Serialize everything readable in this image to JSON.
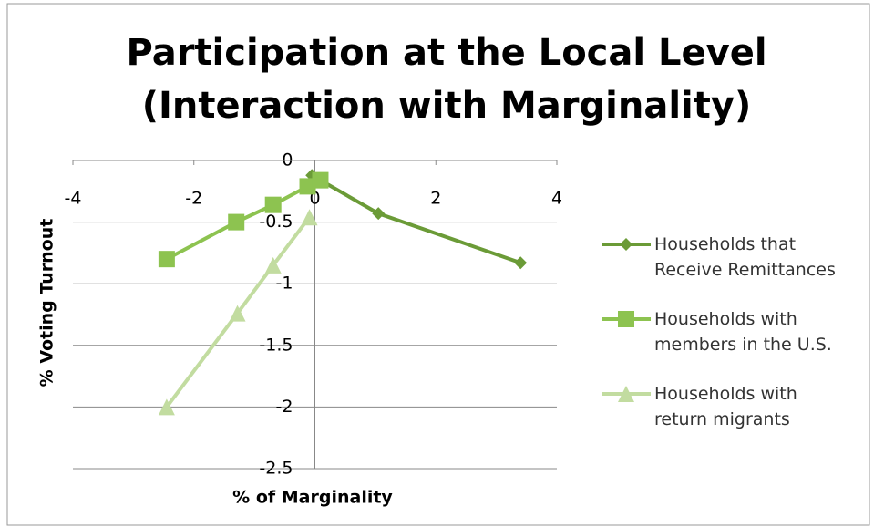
{
  "chart_data": {
    "type": "line",
    "title": [
      "Participation at the Local Level",
      "(Interaction with Marginality)"
    ],
    "x_label": "% of Marginality",
    "y_label": "% Voting Turnout",
    "xlim": [
      -4,
      4
    ],
    "xticks": [
      -4,
      -2,
      0,
      2,
      4
    ],
    "ylim": [
      -2.5,
      0
    ],
    "yticks": [
      0,
      -0.5,
      -1,
      -1.5,
      -2,
      -2.5
    ],
    "grid": true,
    "legend": "right",
    "series": [
      {
        "name": "Households that Receive Remittances",
        "color": "#6b9b37",
        "marker": "diamond",
        "x": [
          -0.05,
          1.05,
          3.4
        ],
        "values": [
          -0.12,
          -0.43,
          -0.83
        ]
      },
      {
        "name": "Households with members in the U.S.",
        "color": "#8dc350",
        "marker": "square",
        "x": [
          -2.45,
          -1.3,
          -0.69,
          -0.12,
          0.09
        ],
        "values": [
          -0.8,
          -0.5,
          -0.36,
          -0.21,
          -0.16
        ]
      },
      {
        "name": "Households with return migrants",
        "color": "#c2dca0",
        "marker": "triangle",
        "x": [
          -2.45,
          -1.28,
          -0.69,
          -0.09
        ],
        "values": [
          -2.0,
          -1.24,
          -0.85,
          -0.46
        ]
      }
    ]
  }
}
